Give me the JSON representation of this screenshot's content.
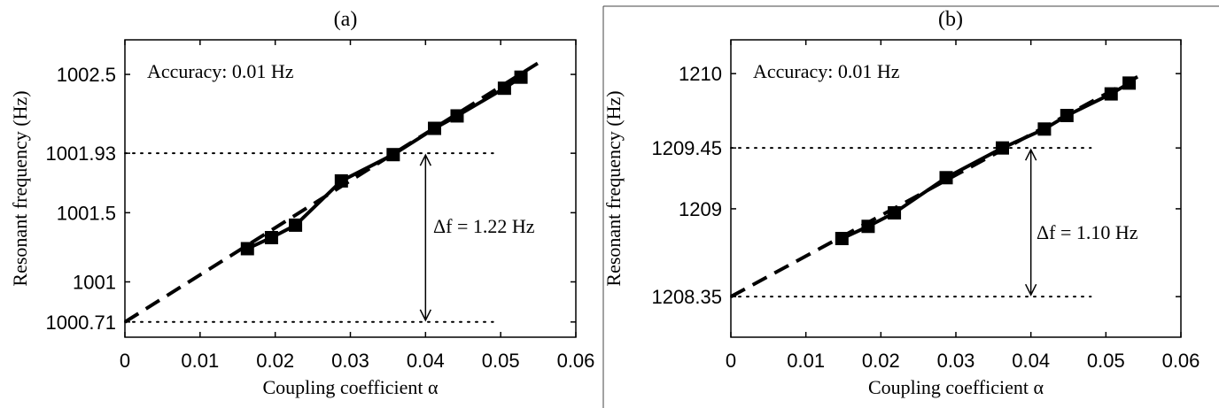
{
  "chart_data": [
    {
      "type": "line",
      "panel_label": "(a)",
      "xlabel": "Coupling coefficient α",
      "ylabel": "Resonant frequency (Hz)",
      "xlim": [
        0,
        0.06
      ],
      "ylim": [
        1000.6,
        1002.75
      ],
      "xticks": [
        0,
        0.01,
        0.02,
        0.03,
        0.04,
        0.05,
        0.06
      ],
      "xtick_labels": [
        "0",
        "0.01",
        "0.02",
        "0.03",
        "0.04",
        "0.05",
        "0.06"
      ],
      "yticks": [
        1000.71,
        1001,
        1001.5,
        1001.93,
        1002.5
      ],
      "ytick_labels": [
        "1000.71",
        "1001",
        "1001.5",
        "1001.93",
        "1002.5"
      ],
      "grid": false,
      "accuracy_text": "Accuracy: 0.01 Hz",
      "delta_text": "Δf = 1.22 Hz",
      "delta_x": 0.04,
      "delta_range": [
        1000.71,
        1001.93
      ],
      "ref_lines": [
        1001.93,
        1000.71
      ],
      "ref_xmax": 0.049,
      "series": [
        {
          "style": "solid-square",
          "x": [
            0.0163,
            0.0195,
            0.0227,
            0.0288,
            0.0357,
            0.0412,
            0.0442,
            0.0505,
            0.0527
          ],
          "y": [
            1001.24,
            1001.32,
            1001.41,
            1001.73,
            1001.92,
            1002.11,
            1002.2,
            1002.4,
            1002.48
          ]
        },
        {
          "style": "dashed-fit",
          "x": [
            0.0,
            0.0555
          ],
          "y": [
            1000.71,
            1002.6
          ]
        }
      ],
      "colors": {
        "line": "#000000",
        "background": "#ffffff"
      }
    },
    {
      "type": "line",
      "panel_label": "(b)",
      "xlabel": "Coupling coefficient α",
      "ylabel": "Resonant frequency (Hz)",
      "xlim": [
        0,
        0.06
      ],
      "ylim": [
        1208.05,
        1210.25
      ],
      "xticks": [
        0,
        0.01,
        0.02,
        0.03,
        0.04,
        0.05,
        0.06
      ],
      "xtick_labels": [
        "0",
        "0.01",
        "0.02",
        "0.03",
        "0.04",
        "0.05",
        "0.06"
      ],
      "yticks": [
        1208.35,
        1209,
        1209.45,
        1210
      ],
      "ytick_labels": [
        "1208.35",
        "1209",
        "1209.45",
        "1210"
      ],
      "grid": false,
      "accuracy_text": "Accuracy: 0.01 Hz",
      "delta_text": "Δf = 1.10 Hz",
      "delta_x": 0.04,
      "delta_range": [
        1208.35,
        1209.45
      ],
      "ref_lines": [
        1209.45,
        1208.35
      ],
      "ref_xmax": 0.048,
      "series": [
        {
          "style": "solid-square",
          "x": [
            0.0148,
            0.0183,
            0.0218,
            0.0287,
            0.0362,
            0.0418,
            0.0448,
            0.0507,
            0.0531
          ],
          "y": [
            1208.78,
            1208.87,
            1208.97,
            1209.23,
            1209.45,
            1209.59,
            1209.69,
            1209.85,
            1209.93
          ]
        },
        {
          "style": "dashed-fit",
          "x": [
            0.0,
            0.055
          ],
          "y": [
            1208.35,
            1210.0
          ]
        }
      ],
      "colors": {
        "line": "#000000",
        "background": "#ffffff"
      }
    }
  ]
}
